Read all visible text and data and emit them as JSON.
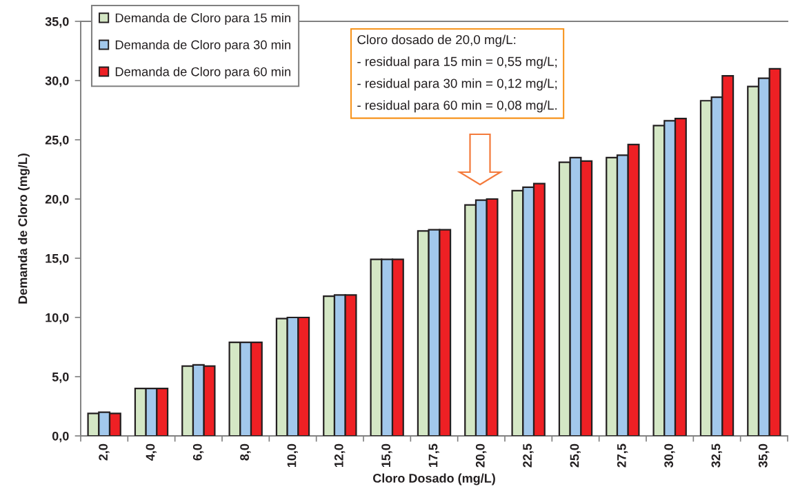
{
  "chart_data": {
    "type": "bar",
    "xlabel": "Cloro Dosado (mg/L)",
    "ylabel": "Demanda de Cloro (mg/L)",
    "categories": [
      "2,0",
      "4,0",
      "6,0",
      "8,0",
      "10,0",
      "12,0",
      "15,0",
      "17,5",
      "20,0",
      "22,5",
      "25,0",
      "27,5",
      "30,0",
      "32,5",
      "35,0"
    ],
    "series": [
      {
        "name": "Demanda de Cloro para 15 min",
        "color": "#d4e7c5",
        "values": [
          1.9,
          4.0,
          5.9,
          7.9,
          9.9,
          11.8,
          14.9,
          17.3,
          19.5,
          20.7,
          23.1,
          23.5,
          26.2,
          28.3,
          29.5
        ]
      },
      {
        "name": "Demanda de Cloro para 30 min",
        "color": "#a2c8ec",
        "values": [
          2.0,
          4.0,
          6.0,
          7.9,
          10.0,
          11.9,
          14.9,
          17.4,
          19.9,
          21.0,
          23.5,
          23.7,
          26.6,
          28.6,
          30.2
        ]
      },
      {
        "name": "Demanda de Cloro para 60 min",
        "color": "#ee2024",
        "values": [
          1.9,
          4.0,
          5.9,
          7.9,
          10.0,
          11.9,
          14.9,
          17.4,
          20.0,
          21.3,
          23.2,
          24.6,
          26.8,
          30.4,
          31.0
        ]
      }
    ],
    "ylim": [
      0,
      35
    ],
    "yticks": [
      {
        "value": 0,
        "label": "0,0"
      },
      {
        "value": 5,
        "label": "5,0"
      },
      {
        "value": 10,
        "label": "10,0"
      },
      {
        "value": 15,
        "label": "15,0"
      },
      {
        "value": 20,
        "label": "20,0"
      },
      {
        "value": 25,
        "label": "25,0"
      },
      {
        "value": 30,
        "label": "30,0"
      },
      {
        "value": 35,
        "label": "35,0"
      }
    ],
    "legend": "top left",
    "annotations": [
      "Cloro dosado de 20,0 mg/L:\n- residual para 15 min = 0,55 mg/L;\n- residual para 30 min = 0,12 mg/L;\n- residual para 60 min = 0,08 mg/L."
    ]
  }
}
